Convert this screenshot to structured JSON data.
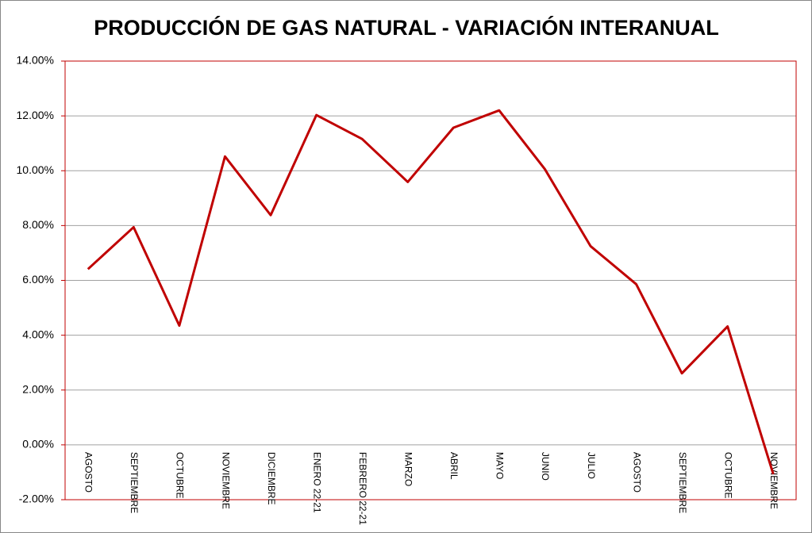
{
  "chart_data": {
    "type": "line",
    "title": "PRODUCCIÓN DE GAS NATURAL - VARIACIÓN INTERANUAL",
    "categories": [
      "AGOSTO",
      "SEPTIEMBRE",
      "OCTUBRE",
      "NOVIEMBRE",
      "DICIEMBRE",
      "ENERO 22-21",
      "FEBRERO 22-21",
      "MARZO",
      "ABRIL",
      "MAYO",
      "JUNIO",
      "JULIO",
      "AGOSTO",
      "SEPTIEMBRE",
      "OCTUBRE",
      "NOVIEMBRE"
    ],
    "series": [
      {
        "name": "Variación interanual",
        "color": "#c00000",
        "values": [
          6.41,
          7.94,
          4.35,
          10.52,
          8.38,
          12.03,
          11.16,
          9.59,
          11.57,
          12.2,
          10.06,
          7.25,
          5.86,
          2.61,
          4.32,
          -1.07
        ]
      }
    ],
    "ylim": [
      -2,
      14
    ],
    "yticks": [
      {
        "value": -2,
        "label": "-2.00%"
      },
      {
        "value": 0,
        "label": "0.00%"
      },
      {
        "value": 2,
        "label": "2.00%"
      },
      {
        "value": 4,
        "label": "4.00%"
      },
      {
        "value": 6,
        "label": "6.00%"
      },
      {
        "value": 8,
        "label": "8.00%"
      },
      {
        "value": 10,
        "label": "10.00%"
      },
      {
        "value": 12,
        "label": "12.00%"
      },
      {
        "value": 14,
        "label": "14.00%"
      }
    ],
    "grid": true
  }
}
